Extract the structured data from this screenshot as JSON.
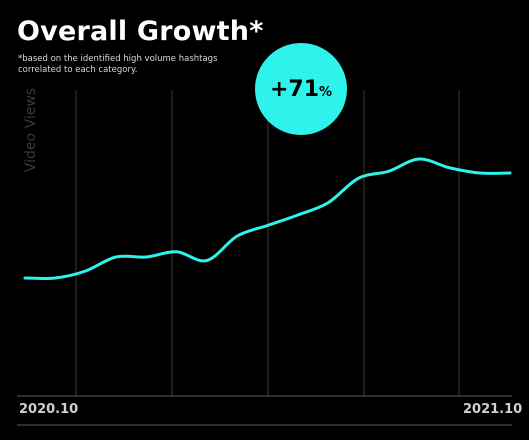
{
  "title": "Overall Growth*",
  "footnote": "*based on the identified high volume hashtags correlated to each category.",
  "badge": {
    "value": "+71",
    "unit": "%"
  },
  "colors": {
    "line": "#2ef2ec",
    "badge": "#2ef2ec",
    "grid": "#3a3a3a",
    "axis": "#5a5a5a",
    "background": "#000000"
  },
  "chart_data": {
    "type": "line",
    "title": "Overall Growth*",
    "ylabel": "Video Views",
    "xlabel": "",
    "x_tick_labels": [
      "2020.10",
      "2021.10"
    ],
    "grid": "vertical",
    "series": [
      {
        "values": [
          0.0,
          0.0,
          0.04,
          0.12,
          0.12,
          0.15,
          0.1,
          0.24,
          0.3,
          0.36,
          0.43,
          0.57,
          0.61,
          0.68,
          0.63,
          0.6,
          0.6
        ]
      }
    ]
  }
}
